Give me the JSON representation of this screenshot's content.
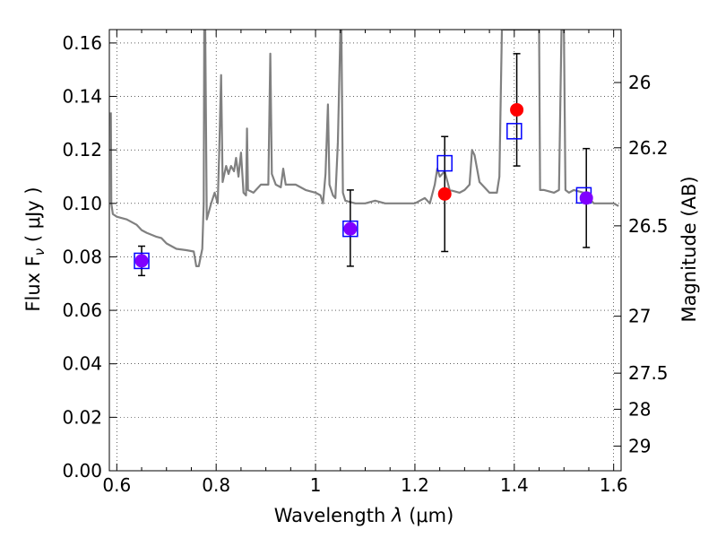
{
  "chart_data": {
    "type": "scatter",
    "xlabel": "Wavelength  λ (μm)",
    "ylabel": "Flux  F",
    "ylabel_sub": "ν",
    "ylabel_unit": " ( μJy )",
    "ylabel_right": "Magnitude (AB)",
    "xlim": [
      0.585,
      1.615
    ],
    "ylim": [
      0.0,
      0.165
    ],
    "x_ticks": [
      0.6,
      0.8,
      1.0,
      1.2,
      1.4,
      1.6
    ],
    "x_tick_labels": [
      "0.6",
      "0.8",
      "1",
      "1.2",
      "1.4",
      "1.6"
    ],
    "y_ticks": [
      0.0,
      0.02,
      0.04,
      0.06,
      0.08,
      0.1,
      0.12,
      0.14,
      0.16
    ],
    "y_tick_labels": [
      "0.00",
      "0.02",
      "0.04",
      "0.06",
      "0.08",
      "0.10",
      "0.12",
      "0.14",
      "0.16"
    ],
    "right_ticks": [
      {
        "label": "26",
        "flux": 0.1452
      },
      {
        "label": "26.2",
        "flux": 0.1208
      },
      {
        "label": "26.5",
        "flux": 0.0916
      },
      {
        "label": "27",
        "flux": 0.0578
      },
      {
        "label": "27.5",
        "flux": 0.0365
      },
      {
        "label": "28",
        "flux": 0.023
      },
      {
        "label": "29",
        "flux": 0.0092
      }
    ],
    "grid": true,
    "colors": {
      "model": "#808080",
      "observed": "#ff0000",
      "synthetic": "#0000ff",
      "overlap": "#8000ff",
      "error": "#000000"
    },
    "series": [
      {
        "kind": "model_spectrum",
        "points": [
          [
            0.588,
            0.134
          ],
          [
            0.589,
            0.1
          ],
          [
            0.592,
            0.096
          ],
          [
            0.6,
            0.095
          ],
          [
            0.62,
            0.094
          ],
          [
            0.64,
            0.092
          ],
          [
            0.65,
            0.09
          ],
          [
            0.66,
            0.089
          ],
          [
            0.68,
            0.0875
          ],
          [
            0.69,
            0.087
          ],
          [
            0.7,
            0.085
          ],
          [
            0.72,
            0.083
          ],
          [
            0.74,
            0.0825
          ],
          [
            0.755,
            0.082
          ],
          [
            0.76,
            0.0765
          ],
          [
            0.765,
            0.0765
          ],
          [
            0.772,
            0.083
          ],
          [
            0.775,
            0.1
          ],
          [
            0.776,
            0.165
          ],
          [
            0.778,
            0.165
          ],
          [
            0.781,
            0.094
          ],
          [
            0.79,
            0.1
          ],
          [
            0.797,
            0.104
          ],
          [
            0.803,
            0.1
          ],
          [
            0.806,
            0.118
          ],
          [
            0.81,
            0.148
          ],
          [
            0.813,
            0.108
          ],
          [
            0.82,
            0.114
          ],
          [
            0.825,
            0.111
          ],
          [
            0.83,
            0.114
          ],
          [
            0.836,
            0.112
          ],
          [
            0.84,
            0.117
          ],
          [
            0.845,
            0.11
          ],
          [
            0.85,
            0.119
          ],
          [
            0.855,
            0.104
          ],
          [
            0.86,
            0.103
          ],
          [
            0.862,
            0.128
          ],
          [
            0.864,
            0.105
          ],
          [
            0.875,
            0.104
          ],
          [
            0.89,
            0.107
          ],
          [
            0.905,
            0.107
          ],
          [
            0.909,
            0.156
          ],
          [
            0.912,
            0.111
          ],
          [
            0.92,
            0.107
          ],
          [
            0.93,
            0.106
          ],
          [
            0.935,
            0.113
          ],
          [
            0.94,
            0.107
          ],
          [
            0.96,
            0.107
          ],
          [
            0.98,
            0.105
          ],
          [
            1.0,
            0.104
          ],
          [
            1.01,
            0.103
          ],
          [
            1.015,
            0.1
          ],
          [
            1.02,
            0.111
          ],
          [
            1.025,
            0.137
          ],
          [
            1.028,
            0.107
          ],
          [
            1.035,
            0.103
          ],
          [
            1.04,
            0.102
          ],
          [
            1.045,
            0.123
          ],
          [
            1.05,
            0.165
          ],
          [
            1.052,
            0.165
          ],
          [
            1.055,
            0.104
          ],
          [
            1.06,
            0.101
          ],
          [
            1.08,
            0.1
          ],
          [
            1.1,
            0.1
          ],
          [
            1.12,
            0.101
          ],
          [
            1.14,
            0.1
          ],
          [
            1.16,
            0.1
          ],
          [
            1.18,
            0.1
          ],
          [
            1.2,
            0.1
          ],
          [
            1.21,
            0.101
          ],
          [
            1.22,
            0.102
          ],
          [
            1.23,
            0.1
          ],
          [
            1.24,
            0.107
          ],
          [
            1.245,
            0.113
          ],
          [
            1.25,
            0.11
          ],
          [
            1.26,
            0.112
          ],
          [
            1.27,
            0.105
          ],
          [
            1.29,
            0.104
          ],
          [
            1.3,
            0.105
          ],
          [
            1.31,
            0.107
          ],
          [
            1.315,
            0.12
          ],
          [
            1.32,
            0.118
          ],
          [
            1.33,
            0.108
          ],
          [
            1.34,
            0.106
          ],
          [
            1.35,
            0.104
          ],
          [
            1.36,
            0.104
          ],
          [
            1.365,
            0.104
          ],
          [
            1.37,
            0.11
          ],
          [
            1.375,
            0.165
          ],
          [
            1.39,
            0.165
          ],
          [
            1.41,
            0.165
          ],
          [
            1.42,
            0.165
          ],
          [
            1.43,
            0.165
          ],
          [
            1.44,
            0.165
          ],
          [
            1.45,
            0.165
          ],
          [
            1.452,
            0.105
          ],
          [
            1.46,
            0.105
          ],
          [
            1.48,
            0.104
          ],
          [
            1.49,
            0.105
          ],
          [
            1.495,
            0.165
          ],
          [
            1.5,
            0.165
          ],
          [
            1.503,
            0.105
          ],
          [
            1.51,
            0.104
          ],
          [
            1.52,
            0.105
          ],
          [
            1.54,
            0.104
          ],
          [
            1.56,
            0.1
          ],
          [
            1.58,
            0.1
          ],
          [
            1.6,
            0.1
          ],
          [
            1.61,
            0.099
          ]
        ]
      },
      {
        "kind": "synthetic_photometry",
        "points": [
          [
            0.65,
            0.0785
          ],
          [
            1.07,
            0.0905
          ],
          [
            1.26,
            0.115
          ],
          [
            1.4,
            0.127
          ],
          [
            1.54,
            0.103
          ]
        ]
      },
      {
        "kind": "observed_photometry",
        "points": [
          {
            "x": 0.65,
            "y": 0.0785,
            "yerr_lo": 0.0055,
            "yerr_hi": 0.0055
          },
          {
            "x": 1.07,
            "y": 0.0905,
            "yerr_lo": 0.014,
            "yerr_hi": 0.0145
          },
          {
            "x": 1.26,
            "y": 0.1035,
            "yerr_lo": 0.0215,
            "yerr_hi": 0.0215
          },
          {
            "x": 1.405,
            "y": 0.135,
            "yerr_lo": 0.021,
            "yerr_hi": 0.021
          },
          {
            "x": 1.545,
            "y": 0.102,
            "yerr_lo": 0.0185,
            "yerr_hi": 0.0185
          }
        ]
      }
    ]
  }
}
